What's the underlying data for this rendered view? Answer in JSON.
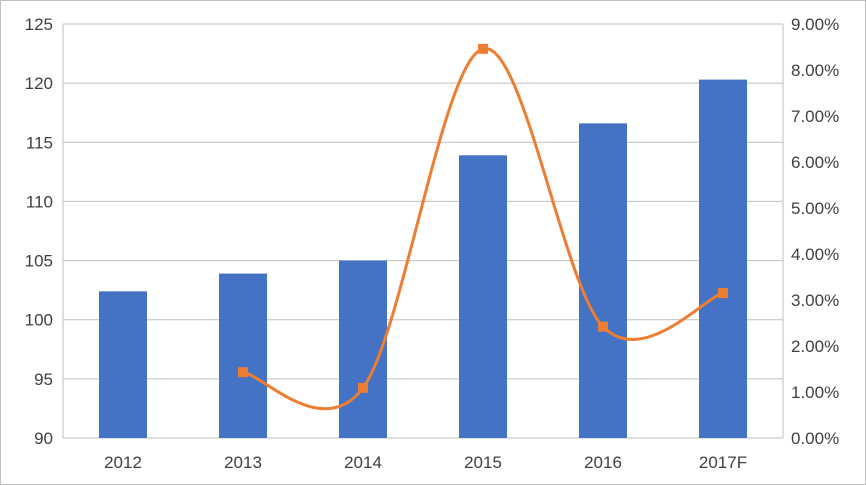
{
  "chart_data": {
    "type": "bar",
    "title": "",
    "categories": [
      "2012",
      "2013",
      "2014",
      "2015",
      "2016",
      "2017F"
    ],
    "series": [
      {
        "type": "bar",
        "axis": "left",
        "color": "#4472C4",
        "values": [
          102.4,
          103.9,
          105.0,
          113.9,
          116.6,
          120.3
        ]
      },
      {
        "type": "line",
        "axis": "right",
        "smooth": true,
        "marker": "square",
        "color": "#ED7D31",
        "values": [
          null,
          0.0143,
          0.0109,
          0.0846,
          0.0242,
          0.0315
        ]
      }
    ],
    "y_left": {
      "min": 90,
      "max": 125,
      "step": 5,
      "ticks": [
        "90",
        "95",
        "100",
        "105",
        "110",
        "115",
        "120",
        "125"
      ]
    },
    "y_right": {
      "min": 0,
      "max": 0.09,
      "step": 0.01,
      "ticks": [
        "0.00%",
        "1.00%",
        "2.00%",
        "3.00%",
        "4.00%",
        "5.00%",
        "6.00%",
        "7.00%",
        "8.00%",
        "9.00%"
      ]
    },
    "grid": true,
    "legend": "none",
    "gridline_color": "#bfbfbf",
    "axis_text_color": "#404040"
  }
}
